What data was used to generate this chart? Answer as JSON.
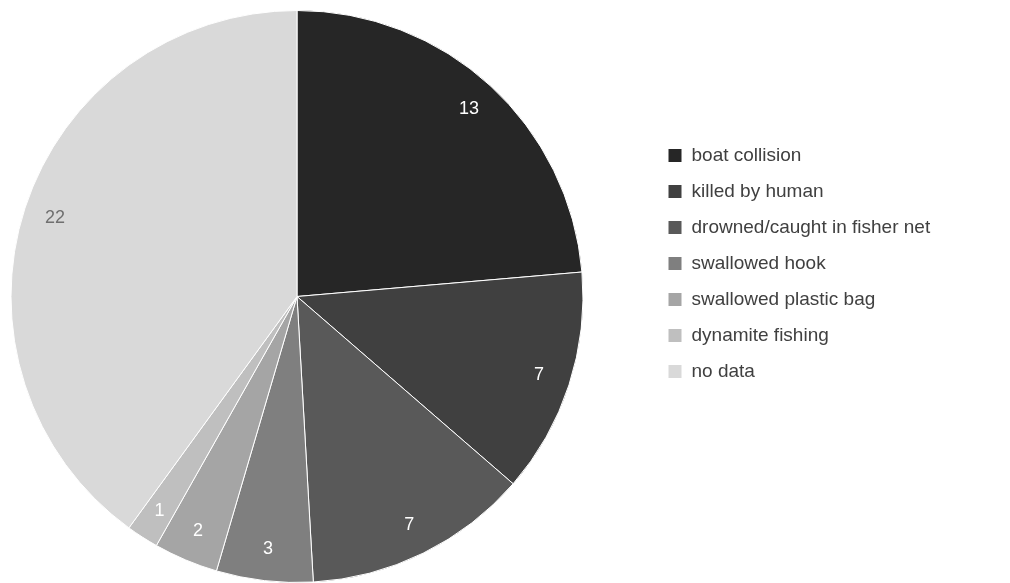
{
  "chart_data": {
    "type": "pie",
    "categories": [
      "boat collision",
      "killed by human",
      "drowned/caught in fisher net",
      "swallowed hook",
      "swallowed plastic bag",
      "dynamite fishing",
      "no data"
    ],
    "values": [
      13,
      7,
      7,
      3,
      2,
      1,
      22
    ],
    "colors": [
      "#262626",
      "#404040",
      "#595959",
      "#7f7f7f",
      "#a5a5a5",
      "#bfbfbf",
      "#d9d9d9"
    ],
    "legend": "right",
    "data_labels": true
  }
}
